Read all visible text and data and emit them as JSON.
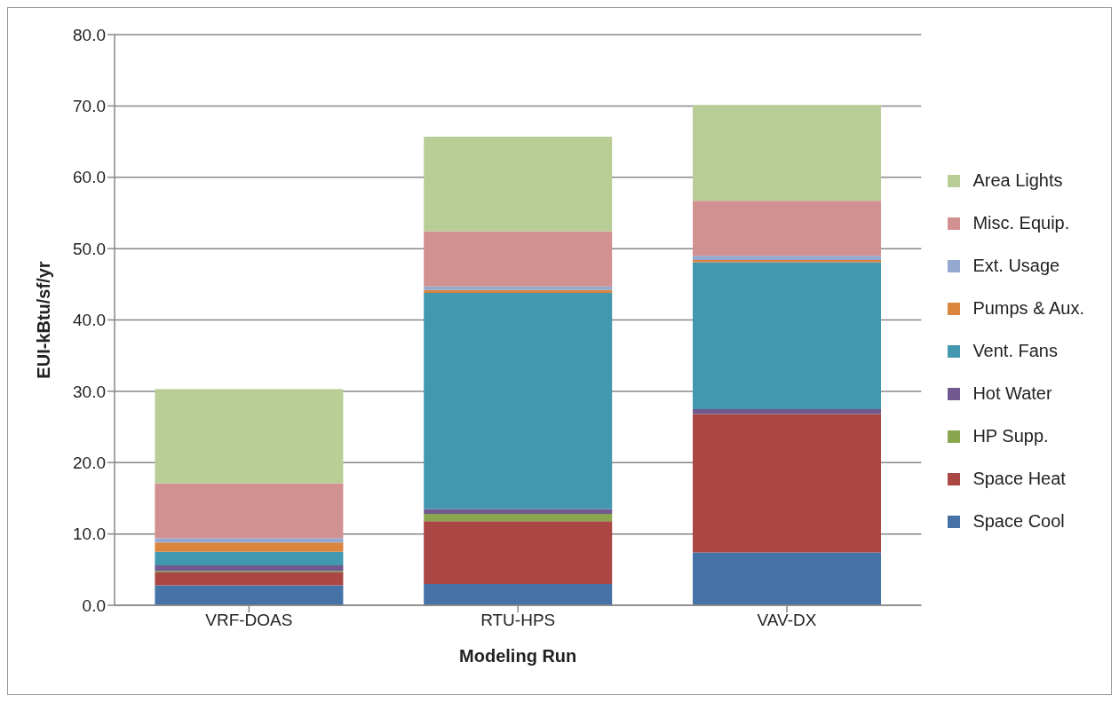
{
  "chart_data": {
    "type": "bar",
    "stacked": true,
    "xlabel": "Modeling Run",
    "ylabel": "EUI-kBtu/sf/yr",
    "categories": [
      "VRF-DOAS",
      "RTU-HPS",
      "VAV-DX"
    ],
    "series": [
      {
        "name": "Space Cool",
        "color": "#4572a7",
        "values": [
          2.8,
          3.0,
          7.4
        ]
      },
      {
        "name": "Space Heat",
        "color": "#aa4643",
        "values": [
          1.8,
          8.8,
          19.4
        ]
      },
      {
        "name": "HP Supp.",
        "color": "#89a54e",
        "values": [
          0.2,
          1.0,
          0
        ]
      },
      {
        "name": "Hot Water",
        "color": "#71588f",
        "values": [
          0.8,
          0.7,
          0.7
        ]
      },
      {
        "name": "Vent. Fans",
        "color": "#4198af",
        "values": [
          1.9,
          30.3,
          20.6
        ]
      },
      {
        "name": "Pumps & Aux.",
        "color": "#db843d",
        "values": [
          1.3,
          0.4,
          0.3
        ]
      },
      {
        "name": "Ext. Usage",
        "color": "#93a9cf",
        "values": [
          0.6,
          0.5,
          0.6
        ]
      },
      {
        "name": "Misc. Equip.",
        "color": "#d09190",
        "values": [
          7.7,
          7.7,
          7.7
        ]
      },
      {
        "name": "Area Lights",
        "color": "#b9cd96",
        "values": [
          13.2,
          13.3,
          13.4
        ]
      }
    ],
    "ylim": [
      0,
      80
    ],
    "yticks": [
      {
        "value": 0,
        "label": "0.0"
      },
      {
        "value": 10,
        "label": "10.0"
      },
      {
        "value": 20,
        "label": "20.0"
      },
      {
        "value": 30,
        "label": "30.0"
      },
      {
        "value": 40,
        "label": "40.0"
      },
      {
        "value": 50,
        "label": "50.0"
      },
      {
        "value": 60,
        "label": "60.0"
      },
      {
        "value": 70,
        "label": "70.0"
      },
      {
        "value": 80,
        "label": "80.0"
      }
    ],
    "grid": "y",
    "legend": "right"
  }
}
